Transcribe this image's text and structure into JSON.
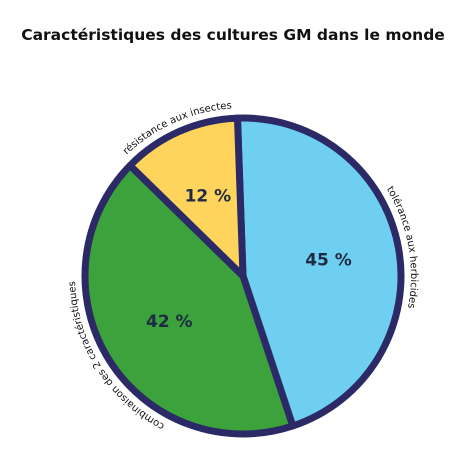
{
  "chart_data": {
    "type": "pie",
    "title": "Caractéristiques des cultures GM dans le monde",
    "slices": [
      {
        "label": "tolérance aux herbicides",
        "value": 45,
        "value_label": "45 %",
        "color": "#6ecff0"
      },
      {
        "label": "combinaison des 2 caractéristiques",
        "value": 42,
        "value_label": "42 %",
        "color": "#3ca33c"
      },
      {
        "label": "résistance aux insectes",
        "value": 12,
        "value_label": "12 %",
        "color": "#ffd45c"
      }
    ],
    "border_color": "#2c2a66",
    "legend": "none"
  }
}
